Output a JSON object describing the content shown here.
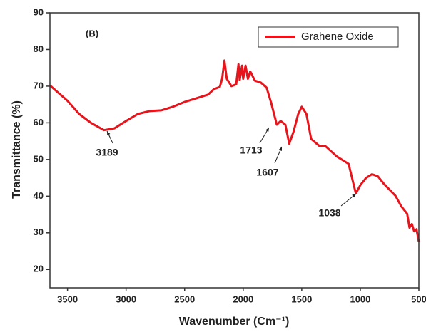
{
  "chart_data": {
    "type": "line",
    "panel_label": "(B)",
    "xlabel": "Wavenumber (Cm⁻¹)",
    "ylabel": "Transmittance (%)",
    "xlim": [
      3650,
      500
    ],
    "ylim": [
      15,
      90
    ],
    "xticks": [
      3500,
      3000,
      2500,
      2000,
      1500,
      1000,
      500
    ],
    "yticks": [
      20,
      30,
      40,
      50,
      60,
      70,
      80,
      90
    ],
    "legend": "upper right",
    "annotations": [
      "3189",
      "1713",
      "1607",
      "1038"
    ],
    "x": [
      3650,
      3500,
      3400,
      3300,
      3189,
      3100,
      3000,
      2900,
      2800,
      2700,
      2600,
      2500,
      2400,
      2300,
      2250,
      2200,
      2180,
      2160,
      2140,
      2100,
      2060,
      2040,
      2030,
      2010,
      2000,
      1980,
      1960,
      1940,
      1900,
      1850,
      1800,
      1760,
      1713,
      1680,
      1640,
      1607,
      1570,
      1530,
      1500,
      1460,
      1420,
      1350,
      1300,
      1200,
      1100,
      1038,
      1000,
      950,
      900,
      850,
      800,
      700,
      650,
      600,
      580,
      560,
      540,
      520,
      500
    ],
    "series": [
      {
        "name": "Grahene Oxide",
        "color": "#e8141c",
        "values": [
          70.2,
          66,
          62.4,
          60,
          58,
          58.5,
          60.5,
          62.4,
          63.2,
          63.4,
          64.4,
          65.7,
          66.7,
          67.7,
          69.2,
          69.8,
          72,
          77,
          72,
          70,
          70.5,
          76,
          71.7,
          75.6,
          72,
          75.6,
          72,
          74,
          71.5,
          71,
          69.6,
          65.3,
          59.5,
          60.5,
          59.5,
          54.3,
          57.6,
          62.4,
          64.4,
          62.4,
          55.6,
          53.7,
          53.7,
          50.8,
          48.8,
          40.7,
          43,
          45,
          46,
          45.4,
          43.4,
          40.1,
          37.2,
          35.2,
          31.4,
          32.4,
          30.4,
          31,
          27.5
        ]
      }
    ]
  }
}
